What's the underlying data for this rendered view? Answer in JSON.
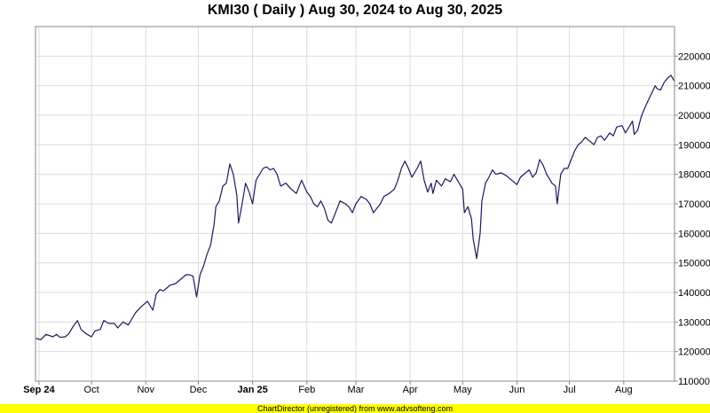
{
  "chart_data": {
    "type": "line",
    "title": "KMI30 ( Daily ) Aug 30, 2024 to Aug 30, 2025",
    "xlabel": "",
    "ylabel": "",
    "grid": true,
    "ylim": [
      110000,
      230000
    ],
    "xlim": [
      "2024-08-30",
      "2025-08-30"
    ],
    "y_ticks": [
      "110000",
      "120000",
      "130000",
      "140000",
      "150000",
      "160000",
      "170000",
      "180000",
      "190000",
      "200000",
      "210000",
      "220000"
    ],
    "x_ticks": [
      {
        "date": "2024-09-01",
        "label": "Sep 24",
        "bold": true
      },
      {
        "date": "2024-10-01",
        "label": "Oct",
        "bold": false
      },
      {
        "date": "2024-11-01",
        "label": "Nov",
        "bold": false
      },
      {
        "date": "2024-12-01",
        "label": "Dec",
        "bold": false
      },
      {
        "date": "2025-01-01",
        "label": "Jan 25",
        "bold": true
      },
      {
        "date": "2025-02-01",
        "label": "Feb",
        "bold": false
      },
      {
        "date": "2025-03-01",
        "label": "Mar",
        "bold": false
      },
      {
        "date": "2025-04-01",
        "label": "Apr",
        "bold": false
      },
      {
        "date": "2025-05-01",
        "label": "May",
        "bold": false
      },
      {
        "date": "2025-06-01",
        "label": "Jun",
        "bold": false
      },
      {
        "date": "2025-07-01",
        "label": "Jul",
        "bold": false
      },
      {
        "date": "2025-08-01",
        "label": "Aug",
        "bold": false
      }
    ],
    "series_color": "#1a1a5e",
    "series": [
      {
        "points": [
          [
            "2024-08-30",
            124500
          ],
          [
            "2024-09-02",
            124000
          ],
          [
            "2024-09-05",
            125800
          ],
          [
            "2024-09-09",
            125000
          ],
          [
            "2024-09-11",
            125800
          ],
          [
            "2024-09-13",
            124800
          ],
          [
            "2024-09-16",
            125000
          ],
          [
            "2024-09-18",
            126000
          ],
          [
            "2024-09-21",
            129000
          ],
          [
            "2024-09-23",
            130500
          ],
          [
            "2024-09-25",
            127500
          ],
          [
            "2024-09-28",
            126000
          ],
          [
            "2024-10-01",
            125000
          ],
          [
            "2024-10-03",
            127000
          ],
          [
            "2024-10-06",
            127500
          ],
          [
            "2024-10-08",
            130500
          ],
          [
            "2024-10-11",
            129500
          ],
          [
            "2024-10-14",
            129500
          ],
          [
            "2024-10-16",
            128000
          ],
          [
            "2024-10-19",
            130000
          ],
          [
            "2024-10-22",
            129000
          ],
          [
            "2024-10-24",
            131000
          ],
          [
            "2024-10-26",
            133000
          ],
          [
            "2024-10-29",
            135000
          ],
          [
            "2024-10-31",
            136000
          ],
          [
            "2024-11-02",
            137000
          ],
          [
            "2024-11-05",
            134000
          ],
          [
            "2024-11-07",
            139500
          ],
          [
            "2024-11-09",
            141000
          ],
          [
            "2024-11-11",
            140500
          ],
          [
            "2024-11-13",
            141500
          ],
          [
            "2024-11-15",
            142500
          ],
          [
            "2024-11-18",
            143000
          ],
          [
            "2024-11-21",
            144500
          ],
          [
            "2024-11-24",
            146000
          ],
          [
            "2024-11-26",
            146000
          ],
          [
            "2024-11-28",
            145500
          ],
          [
            "2024-11-30",
            138500
          ],
          [
            "2024-12-02",
            146000
          ],
          [
            "2024-12-04",
            149000
          ],
          [
            "2024-12-06",
            153000
          ],
          [
            "2024-12-08",
            156000
          ],
          [
            "2024-12-10",
            163000
          ],
          [
            "2024-12-11",
            169000
          ],
          [
            "2024-12-13",
            171000
          ],
          [
            "2024-12-15",
            176000
          ],
          [
            "2024-12-17",
            177000
          ],
          [
            "2024-12-19",
            183500
          ],
          [
            "2024-12-21",
            180000
          ],
          [
            "2024-12-23",
            173000
          ],
          [
            "2024-12-24",
            163500
          ],
          [
            "2024-12-26",
            170000
          ],
          [
            "2024-12-28",
            177000
          ],
          [
            "2024-12-30",
            174000
          ],
          [
            "2025-01-01",
            170000
          ],
          [
            "2025-01-03",
            178000
          ],
          [
            "2025-01-05",
            180000
          ],
          [
            "2025-01-07",
            182000
          ],
          [
            "2025-01-09",
            182500
          ],
          [
            "2025-01-11",
            181500
          ],
          [
            "2025-01-13",
            182000
          ],
          [
            "2025-01-15",
            180000
          ],
          [
            "2025-01-17",
            176000
          ],
          [
            "2025-01-20",
            177000
          ],
          [
            "2025-01-23",
            175000
          ],
          [
            "2025-01-26",
            173500
          ],
          [
            "2025-01-29",
            178000
          ],
          [
            "2025-02-01",
            174000
          ],
          [
            "2025-02-03",
            172500
          ],
          [
            "2025-02-05",
            170000
          ],
          [
            "2025-02-07",
            169000
          ],
          [
            "2025-02-09",
            171000
          ],
          [
            "2025-02-11",
            168500
          ],
          [
            "2025-02-13",
            164500
          ],
          [
            "2025-02-15",
            163500
          ],
          [
            "2025-02-18",
            168000
          ],
          [
            "2025-02-20",
            171000
          ],
          [
            "2025-02-23",
            170000
          ],
          [
            "2025-02-25",
            169000
          ],
          [
            "2025-02-27",
            167000
          ],
          [
            "2025-03-01",
            170000
          ],
          [
            "2025-03-04",
            172500
          ],
          [
            "2025-03-07",
            171500
          ],
          [
            "2025-03-09",
            170000
          ],
          [
            "2025-03-11",
            167000
          ],
          [
            "2025-03-13",
            168500
          ],
          [
            "2025-03-15",
            170000
          ],
          [
            "2025-03-17",
            172500
          ],
          [
            "2025-03-20",
            173500
          ],
          [
            "2025-03-23",
            175000
          ],
          [
            "2025-03-25",
            178000
          ],
          [
            "2025-03-27",
            182000
          ],
          [
            "2025-03-29",
            184500
          ],
          [
            "2025-03-31",
            182000
          ],
          [
            "2025-04-02",
            179000
          ],
          [
            "2025-04-05",
            182000
          ],
          [
            "2025-04-07",
            184500
          ],
          [
            "2025-04-09",
            178000
          ],
          [
            "2025-04-11",
            174000
          ],
          [
            "2025-04-13",
            177000
          ],
          [
            "2025-04-14",
            173500
          ],
          [
            "2025-04-16",
            178000
          ],
          [
            "2025-04-19",
            176000
          ],
          [
            "2025-04-21",
            178500
          ],
          [
            "2025-04-24",
            177500
          ],
          [
            "2025-04-26",
            180000
          ],
          [
            "2025-04-28",
            178000
          ],
          [
            "2025-05-01",
            175000
          ],
          [
            "2025-05-02",
            167000
          ],
          [
            "2025-05-04",
            169000
          ],
          [
            "2025-05-06",
            165000
          ],
          [
            "2025-05-07",
            158000
          ],
          [
            "2025-05-09",
            151500
          ],
          [
            "2025-05-11",
            160000
          ],
          [
            "2025-05-12",
            171000
          ],
          [
            "2025-05-14",
            177000
          ],
          [
            "2025-05-16",
            179000
          ],
          [
            "2025-05-18",
            181500
          ],
          [
            "2025-05-20",
            180000
          ],
          [
            "2025-05-23",
            180500
          ],
          [
            "2025-05-26",
            179500
          ],
          [
            "2025-05-29",
            178000
          ],
          [
            "2025-06-01",
            176500
          ],
          [
            "2025-06-03",
            179000
          ],
          [
            "2025-06-06",
            180500
          ],
          [
            "2025-06-08",
            181500
          ],
          [
            "2025-06-10",
            179000
          ],
          [
            "2025-06-12",
            180500
          ],
          [
            "2025-06-14",
            185000
          ],
          [
            "2025-06-16",
            183000
          ],
          [
            "2025-06-18",
            180000
          ],
          [
            "2025-06-20",
            178000
          ],
          [
            "2025-06-21",
            177000
          ],
          [
            "2025-06-23",
            176000
          ],
          [
            "2025-06-24",
            170000
          ],
          [
            "2025-06-26",
            180000
          ],
          [
            "2025-06-28",
            182000
          ],
          [
            "2025-06-30",
            182000
          ],
          [
            "2025-07-02",
            185000
          ],
          [
            "2025-07-04",
            188000
          ],
          [
            "2025-07-06",
            190000
          ],
          [
            "2025-07-08",
            191000
          ],
          [
            "2025-07-10",
            192500
          ],
          [
            "2025-07-12",
            191500
          ],
          [
            "2025-07-15",
            190000
          ],
          [
            "2025-07-17",
            192500
          ],
          [
            "2025-07-19",
            193000
          ],
          [
            "2025-07-21",
            191500
          ],
          [
            "2025-07-24",
            194000
          ],
          [
            "2025-07-26",
            193000
          ],
          [
            "2025-07-28",
            196000
          ],
          [
            "2025-07-31",
            196500
          ],
          [
            "2025-08-02",
            194000
          ],
          [
            "2025-08-04",
            196000
          ],
          [
            "2025-08-06",
            198000
          ],
          [
            "2025-08-07",
            193500
          ],
          [
            "2025-08-09",
            195000
          ],
          [
            "2025-08-11",
            199500
          ],
          [
            "2025-08-13",
            202500
          ],
          [
            "2025-08-15",
            205000
          ],
          [
            "2025-08-17",
            207500
          ],
          [
            "2025-08-19",
            210000
          ],
          [
            "2025-08-20",
            209000
          ],
          [
            "2025-08-22",
            208500
          ],
          [
            "2025-08-24",
            211000
          ],
          [
            "2025-08-26",
            212500
          ],
          [
            "2025-08-28",
            213500
          ],
          [
            "2025-08-29",
            212500
          ],
          [
            "2025-08-30",
            211500
          ]
        ]
      }
    ]
  },
  "footer": {
    "text": "ChartDirector (unregistered) from www.advsofteng.com"
  }
}
